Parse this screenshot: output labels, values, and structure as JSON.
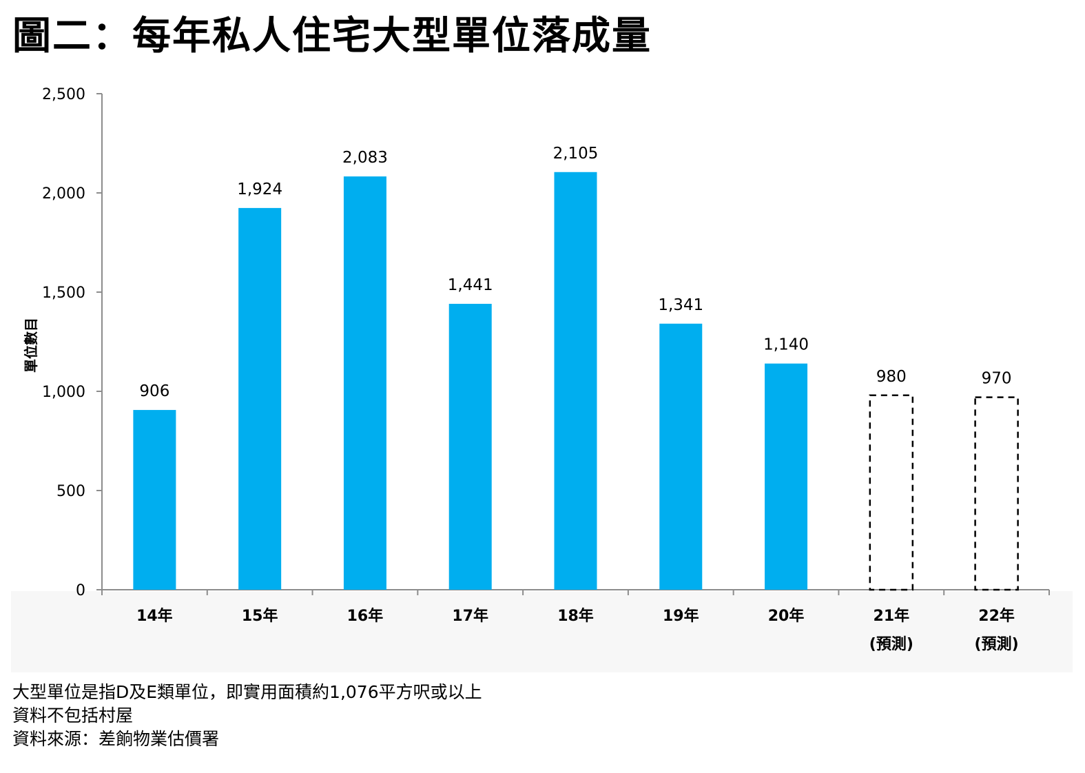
{
  "title": "圖二：每年私人住宅大型單位落成量",
  "chart_data": {
    "type": "bar",
    "categories": [
      "14年",
      "15年",
      "16年",
      "17年",
      "18年",
      "19年",
      "20年",
      "21年",
      "22年"
    ],
    "category_sublabels": [
      "",
      "",
      "",
      "",
      "",
      "",
      "",
      "(預測)",
      "(預測)"
    ],
    "values": [
      906,
      1924,
      2083,
      1441,
      2105,
      1341,
      1140,
      980,
      970
    ],
    "value_labels": [
      "906",
      "1,924",
      "2,083",
      "1,441",
      "2,105",
      "1,341",
      "1,140",
      "980",
      "970"
    ],
    "forecast": [
      false,
      false,
      false,
      false,
      false,
      false,
      false,
      true,
      true
    ],
    "ylabel": "單位數目",
    "xlabel": "",
    "ylim": [
      0,
      2500
    ],
    "yticks": [
      0,
      500,
      1000,
      1500,
      2000,
      2500
    ],
    "ytick_labels": [
      "0",
      "500",
      "1,000",
      "1,500",
      "2,000",
      "2,500"
    ],
    "grid": false,
    "bar_color": "#00aeef",
    "forecast_style": "dashed outline"
  },
  "notes": [
    "大型單位是指D及E類單位，即實用面積約1,076平方呎或以上",
    "資料不包括村屋",
    "資料來源：差餉物業估價署"
  ]
}
